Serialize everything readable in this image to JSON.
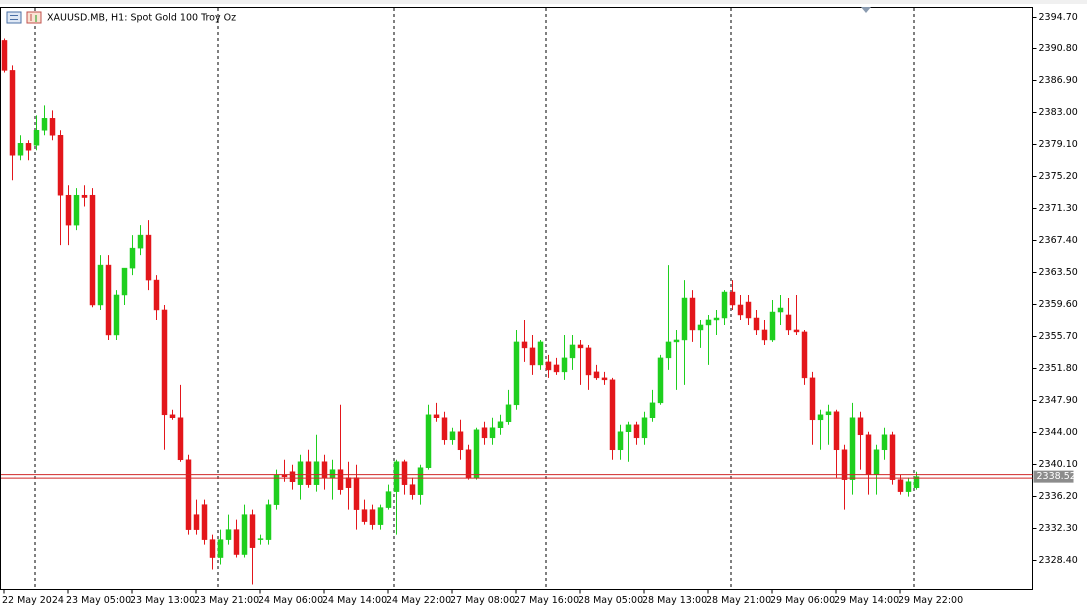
{
  "chart_data": {
    "type": "candlestick",
    "title": "XAUUSD.MB, H1:  Spot Gold 100 Troy Oz",
    "up_color": "#1ecf1e",
    "down_color": "#e3161b",
    "last_price_color": "#d02828",
    "categories": [
      "22 May 2024",
      null,
      null,
      null,
      null,
      null,
      null,
      null,
      "23 May 05:00",
      null,
      null,
      null,
      null,
      null,
      null,
      null,
      "23 May 13:00",
      null,
      null,
      null,
      null,
      null,
      null,
      null,
      "23 May 21:00",
      null,
      null,
      null,
      null,
      null,
      null,
      null,
      "24 May 06:00",
      null,
      null,
      null,
      null,
      null,
      null,
      null,
      "24 May 14:00",
      null,
      null,
      null,
      null,
      null,
      null,
      null,
      "24 May 22:00",
      null,
      null,
      null,
      null,
      null,
      null,
      null,
      "27 May 08:00",
      null,
      null,
      null,
      null,
      null,
      null,
      null,
      "27 May 16:00",
      null,
      null,
      null,
      null,
      null,
      null,
      null,
      "28 May 05:00",
      null,
      null,
      null,
      null,
      null,
      null,
      null,
      "28 May 13:00",
      null,
      null,
      null,
      null,
      null,
      null,
      null,
      "28 May 21:00",
      null,
      null,
      null,
      null,
      null,
      null,
      null,
      "29 May 06:00",
      null,
      null,
      null,
      null,
      null,
      null,
      null,
      "29 May 14:00",
      null,
      null,
      null,
      null,
      null,
      null,
      null,
      "29 May 22:00",
      null,
      null
    ],
    "open": [
      2391.78,
      2388.12,
      2377.76,
      2379.22,
      2378.98,
      2380.81,
      2382.27,
      2380.2,
      2372.88,
      2369.23,
      2372.88,
      2372.88,
      2359.48,
      2364.35,
      2355.82,
      2360.7,
      2363.98,
      2366.42,
      2368.01,
      2362.52,
      2358.87,
      2346.07,
      2345.71,
      2340.58,
      2333.88,
      2335.1,
      2330.83,
      2328.64,
      2330.83,
      2332.05,
      2329.01,
      2333.88,
      2330.83,
      2330.83,
      2335.1,
      2338.76,
      2339.12,
      2337.54,
      2340.34,
      2337.54,
      2340.34,
      2338.39,
      2339.37,
      2338.39,
      2338.39,
      2334.49,
      2334.49,
      2332.66,
      2334.74,
      2336.69,
      2340.34,
      2337.54,
      2336.32,
      2339.61,
      2346.07,
      2345.71,
      2343.02,
      2344.0,
      2341.8,
      2338.39,
      2344.49,
      2343.26,
      2344.49,
      2345.22,
      2347.29,
      2354.97,
      2354.24,
      2352.16,
      2352.53,
      2352.16,
      2351.31,
      2353.02,
      2354.6,
      2354.24,
      2351.31,
      2350.58,
      2350.34,
      2341.8,
      2344.0,
      2344.85,
      2343.26,
      2345.71,
      2347.53,
      2353.02,
      2354.97,
      2355.21,
      2360.33,
      2356.43,
      2357.04,
      2357.65,
      2357.89,
      2361.06,
      2359.48,
      2359.84,
      2357.89,
      2356.43,
      2355.21,
      2358.62,
      2358.26,
      2356.43,
      2356.19,
      2350.58,
      2345.46,
      2346.07,
      2346.44,
      2341.8,
      2338.15,
      2345.71,
      2343.63,
      2338.76,
      2341.8,
      2343.63,
      2338.15,
      2336.69,
      2337.17
    ],
    "high": [
      2392.02,
      2388.73,
      2380.2,
      2379.59,
      2382.63,
      2383.85,
      2383.24,
      2380.81,
      2374.1,
      2373.74,
      2374.1,
      2373.74,
      2365.57,
      2365.57,
      2361.3,
      2363.98,
      2368.01,
      2369.23,
      2369.84,
      2363.13,
      2359.48,
      2346.68,
      2349.73,
      2341.19,
      2335.71,
      2335.71,
      2331.44,
      2332.05,
      2333.88,
      2333.27,
      2335.1,
      2334.49,
      2331.44,
      2335.71,
      2339.37,
      2340.58,
      2339.97,
      2341.19,
      2341.8,
      2343.63,
      2341.19,
      2340.58,
      2347.29,
      2340.34,
      2339.97,
      2335.71,
      2335.1,
      2335.1,
      2337.54,
      2340.58,
      2340.58,
      2338.39,
      2339.97,
      2347.29,
      2347.53,
      2346.44,
      2344.49,
      2345.46,
      2342.41,
      2344.49,
      2345.22,
      2345.71,
      2346.07,
      2349.12,
      2356.43,
      2357.65,
      2355.82,
      2355.21,
      2353.38,
      2353.02,
      2355.82,
      2355.82,
      2355.21,
      2354.6,
      2352.16,
      2351.31,
      2350.58,
      2344.85,
      2345.22,
      2345.22,
      2346.44,
      2349.12,
      2353.38,
      2364.35,
      2356.43,
      2362.52,
      2361.3,
      2357.65,
      2358.26,
      2358.87,
      2361.3,
      2362.52,
      2360.7,
      2360.7,
      2358.87,
      2357.65,
      2360.09,
      2360.7,
      2360.33,
      2360.7,
      2356.43,
      2351.31,
      2346.68,
      2347.29,
      2346.68,
      2342.41,
      2347.53,
      2346.44,
      2344.0,
      2342.41,
      2344.49,
      2344.0,
      2338.76,
      2338.39,
      2339.12
    ],
    "low": [
      2387.87,
      2374.71,
      2377.15,
      2377.15,
      2378.37,
      2380.2,
      2379.59,
      2366.79,
      2366.79,
      2368.62,
      2371.5,
      2359.2,
      2358.87,
      2355.21,
      2355.21,
      2359.48,
      2363.13,
      2365.57,
      2361.3,
      2357.65,
      2341.8,
      2345.46,
      2340.34,
      2331.44,
      2331.44,
      2330.22,
      2327.18,
      2327.79,
      2330.22,
      2328.64,
      2328.64,
      2325.35,
      2330.22,
      2330.22,
      2334.49,
      2337.9,
      2336.93,
      2335.71,
      2337.17,
      2336.69,
      2336.93,
      2335.71,
      2336.32,
      2334.49,
      2332.05,
      2332.66,
      2332.05,
      2332.05,
      2334.49,
      2331.44,
      2336.32,
      2335.71,
      2335.1,
      2339.37,
      2345.22,
      2342.41,
      2342.41,
      2340.58,
      2338.15,
      2338.15,
      2342.41,
      2342.41,
      2343.63,
      2344.85,
      2346.68,
      2352.53,
      2350.94,
      2351.55,
      2350.58,
      2350.94,
      2350.34,
      2351.55,
      2349.73,
      2349.12,
      2350.34,
      2349.73,
      2340.58,
      2340.58,
      2340.34,
      2342.41,
      2342.41,
      2345.22,
      2347.29,
      2351.55,
      2349.12,
      2349.73,
      2354.97,
      2354.24,
      2352.16,
      2355.82,
      2357.04,
      2358.87,
      2357.65,
      2357.04,
      2355.82,
      2354.6,
      2354.97,
      2357.04,
      2355.82,
      2355.82,
      2349.73,
      2342.41,
      2341.8,
      2342.41,
      2338.39,
      2334.49,
      2336.32,
      2339.37,
      2336.32,
      2336.32,
      2340.58,
      2337.54,
      2336.32,
      2336.08,
      2336.93
    ],
    "close": [
      2388.12,
      2377.76,
      2379.22,
      2378.37,
      2380.81,
      2382.27,
      2380.2,
      2372.88,
      2369.23,
      2372.88,
      2372.6,
      2359.48,
      2364.35,
      2355.82,
      2360.7,
      2363.98,
      2366.42,
      2368.01,
      2362.52,
      2358.87,
      2346.07,
      2345.71,
      2340.58,
      2332.05,
      2332.05,
      2330.83,
      2328.64,
      2330.83,
      2332.05,
      2329.01,
      2333.88,
      2329.85,
      2330.95,
      2335.1,
      2338.76,
      2338.5,
      2337.9,
      2340.34,
      2337.54,
      2340.34,
      2338.39,
      2339.37,
      2336.93,
      2337.17,
      2334.49,
      2333.03,
      2332.66,
      2334.74,
      2336.69,
      2340.34,
      2337.54,
      2336.32,
      2339.61,
      2346.07,
      2345.71,
      2343.02,
      2344.0,
      2341.8,
      2338.39,
      2344.24,
      2343.26,
      2344.49,
      2345.22,
      2347.29,
      2354.97,
      2354.24,
      2352.16,
      2354.97,
      2351.55,
      2351.31,
      2353.02,
      2354.6,
      2354.24,
      2350.94,
      2350.58,
      2350.34,
      2341.8,
      2344.0,
      2344.85,
      2343.26,
      2345.71,
      2347.53,
      2353.02,
      2354.97,
      2355.21,
      2360.33,
      2356.43,
      2357.04,
      2357.65,
      2357.89,
      2361.06,
      2359.48,
      2358.26,
      2357.89,
      2356.43,
      2355.21,
      2358.62,
      2359.11,
      2356.43,
      2356.19,
      2350.58,
      2345.46,
      2346.07,
      2346.44,
      2341.8,
      2338.15,
      2345.71,
      2343.63,
      2338.76,
      2341.8,
      2343.63,
      2338.15,
      2336.69,
      2337.9,
      2338.52
    ],
    "last_price": 2338.52,
    "ylim": [
      2324.74,
      2395.8
    ],
    "yticks": [
      {
        "value": 2394.7,
        "label": "2394.70"
      },
      {
        "value": 2390.8,
        "label": "2390.80"
      },
      {
        "value": 2386.9,
        "label": "2386.90"
      },
      {
        "value": 2383,
        "label": "2383.00"
      },
      {
        "value": 2379.1,
        "label": "2379.10"
      },
      {
        "value": 2375.2,
        "label": "2375.20"
      },
      {
        "value": 2371.3,
        "label": "2371.30"
      },
      {
        "value": 2367.4,
        "label": "2367.40"
      },
      {
        "value": 2363.5,
        "label": "2363.50"
      },
      {
        "value": 2359.6,
        "label": "2359.60"
      },
      {
        "value": 2355.7,
        "label": "2355.70"
      },
      {
        "value": 2351.8,
        "label": "2351.80"
      },
      {
        "value": 2347.9,
        "label": "2347.90"
      },
      {
        "value": 2344,
        "label": "2344.00"
      },
      {
        "value": 2340.1,
        "label": "2340.10"
      },
      {
        "value": 2336.2,
        "label": "2336.20"
      },
      {
        "value": 2332.3,
        "label": "2332.30"
      },
      {
        "value": 2328.4,
        "label": "2328.40"
      }
    ]
  }
}
